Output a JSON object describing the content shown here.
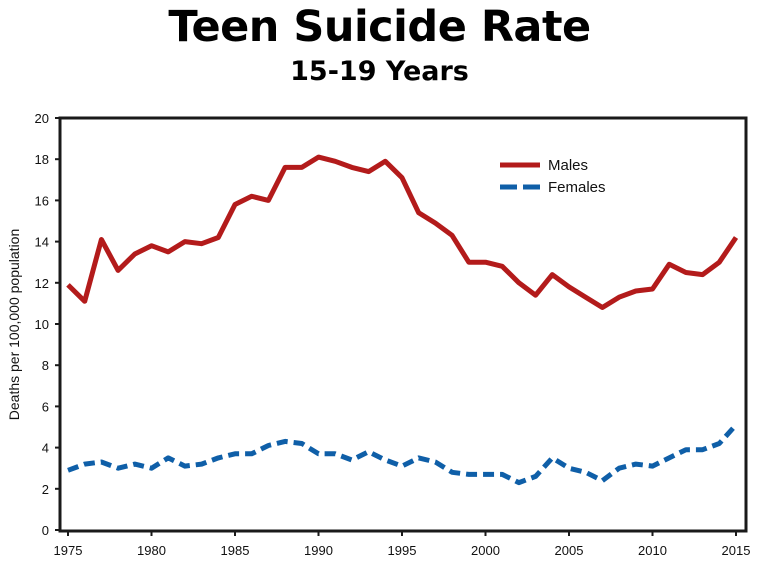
{
  "chart_data": {
    "type": "line",
    "title": "Teen Suicide Rate",
    "subtitle": "15-19 Years",
    "xlabel": "",
    "ylabel": "Deaths per 100,000 population",
    "xlim": [
      1975,
      2015
    ],
    "ylim": [
      0,
      20
    ],
    "xticks": [
      1975,
      1980,
      1985,
      1990,
      1995,
      2000,
      2005,
      2010,
      2015
    ],
    "yticks": [
      0,
      2,
      4,
      6,
      8,
      10,
      12,
      14,
      16,
      18,
      20
    ],
    "grid": false,
    "legend_position": "top-right",
    "x": [
      1975,
      1976,
      1977,
      1978,
      1979,
      1980,
      1981,
      1982,
      1983,
      1984,
      1985,
      1986,
      1987,
      1988,
      1989,
      1990,
      1991,
      1992,
      1993,
      1994,
      1995,
      1996,
      1997,
      1998,
      1999,
      2000,
      2001,
      2002,
      2003,
      2004,
      2005,
      2006,
      2007,
      2008,
      2009,
      2010,
      2011,
      2012,
      2013,
      2014,
      2015
    ],
    "series": [
      {
        "name": "Males",
        "color": "#b31b1b",
        "style": "solid",
        "values": [
          11.9,
          11.1,
          14.1,
          12.6,
          13.4,
          13.8,
          13.5,
          14.0,
          13.9,
          14.2,
          15.8,
          16.2,
          16.0,
          17.6,
          17.6,
          18.1,
          17.9,
          17.6,
          17.4,
          17.9,
          17.1,
          15.4,
          14.9,
          14.3,
          13.0,
          13.0,
          12.8,
          12.0,
          11.4,
          12.4,
          11.8,
          11.3,
          10.8,
          11.3,
          11.6,
          11.7,
          12.9,
          12.5,
          12.4,
          13.0,
          14.2
        ]
      },
      {
        "name": "Females",
        "color": "#0f5fa8",
        "style": "dashed",
        "values": [
          2.9,
          3.2,
          3.3,
          3.0,
          3.2,
          3.0,
          3.5,
          3.1,
          3.2,
          3.5,
          3.7,
          3.7,
          4.1,
          4.3,
          4.2,
          3.7,
          3.7,
          3.4,
          3.8,
          3.4,
          3.1,
          3.5,
          3.3,
          2.8,
          2.7,
          2.7,
          2.7,
          2.3,
          2.6,
          3.5,
          3.0,
          2.8,
          2.4,
          3.0,
          3.2,
          3.1,
          3.5,
          3.9,
          3.9,
          4.2,
          5.1
        ]
      }
    ]
  }
}
